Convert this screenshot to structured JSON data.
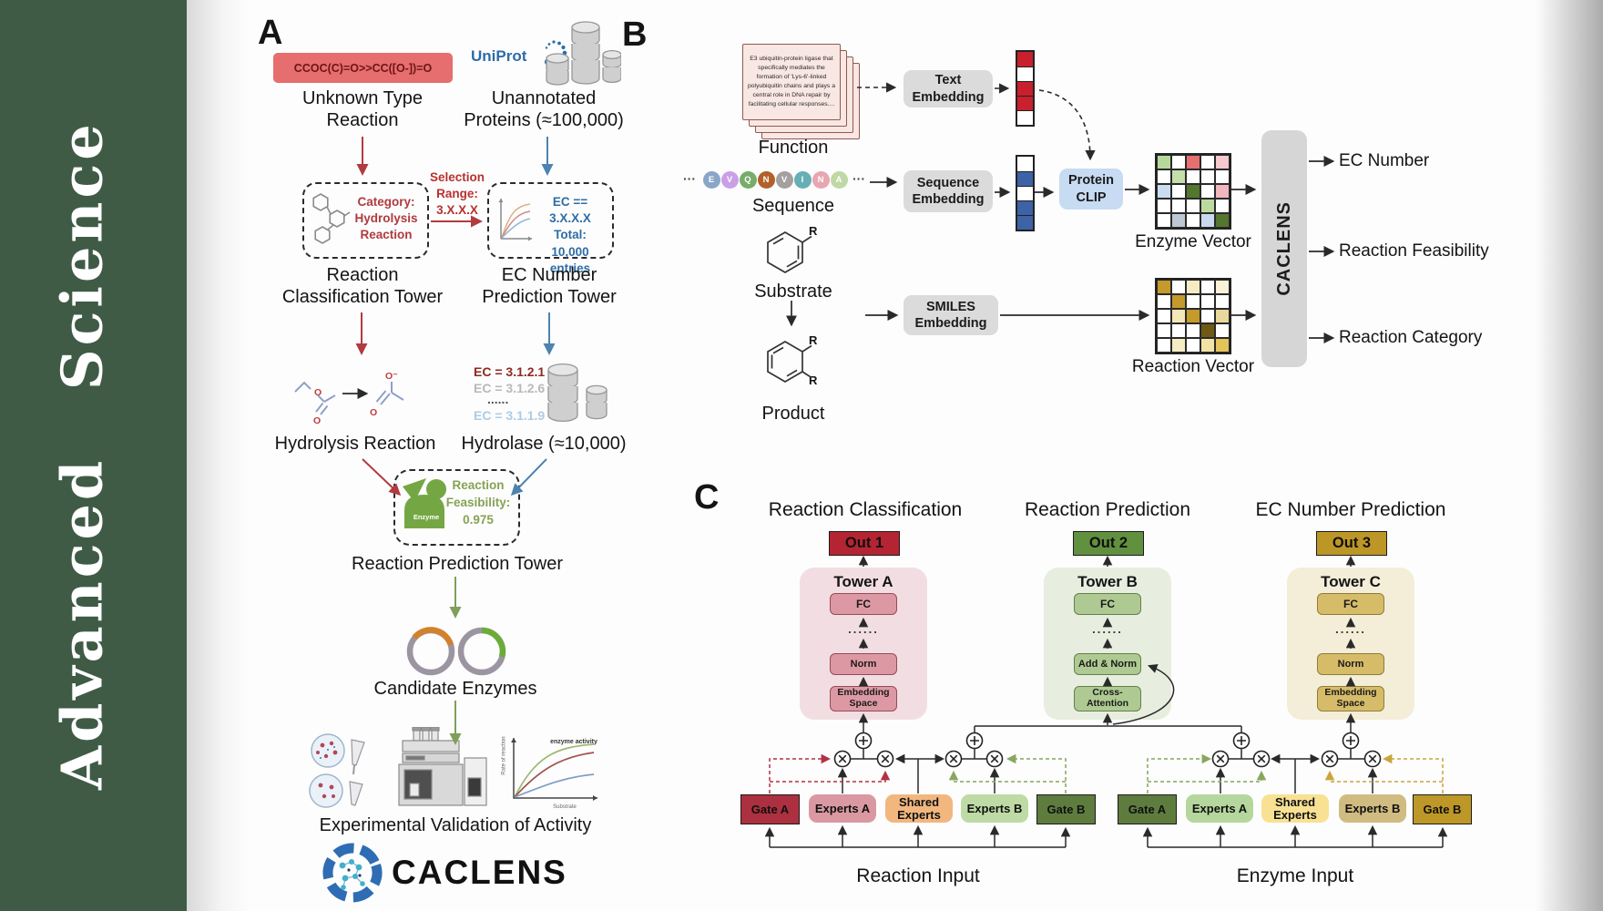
{
  "sidebar": {
    "journal": "Advanced Science"
  },
  "panelA": {
    "label": "A",
    "smiles": "CCOC(C)=O>>CC([O-])=O",
    "unknown_l1": "Unknown Type",
    "unknown_l2": "Reaction",
    "uniprot": "UniProt",
    "unannotated_l1": "Unannotated",
    "unannotated_l2": "Proteins (≈100,000)",
    "category_lines": [
      "Category:",
      "Hydrolysis",
      "Reaction"
    ],
    "selection_lines": [
      "Selection",
      "Range:",
      "3.X.X.X"
    ],
    "ec_box_lines": [
      "EC == 3.X.X.X",
      "Total: 10,000",
      "entries"
    ],
    "classification_tower_l1": "Reaction",
    "classification_tower_l2": "Classification Tower",
    "ec_tower_l1": "EC Number",
    "ec_tower_l2": "Prediction Tower",
    "atoms": {
      "o": "O",
      "ominus": "O⁻"
    },
    "ec_list": [
      {
        "text": "EC = 3.1.2.1",
        "color": "#8E2A20"
      },
      {
        "text": "EC = 3.1.2.6",
        "color": "#B9B9B9"
      },
      {
        "text": "......",
        "color": "#555555"
      },
      {
        "text": "EC = 3.1.1.9",
        "color": "#AECBE4"
      }
    ],
    "hydrolysis": "Hydrolysis Reaction",
    "hydrolase": "Hydrolase (≈10,000)",
    "enzyme_label": "Enzyme",
    "feasibility_lines": [
      "Reaction",
      "Feasibility:",
      "0.975"
    ],
    "prediction_tower": "Reaction Prediction Tower",
    "candidate": "Candidate Enzymes",
    "validation": "Experimental Validation of Activity",
    "graph": {
      "ylabel": "Rate of reaction",
      "xlabel": "Substrate",
      "annotation": "enzyme activity"
    },
    "logo_text": "CACLENS"
  },
  "panelB": {
    "label": "B",
    "card_text": "E3 ubiquitin-protein ligase that specifically mediates the formation of 'Lys-6'-linked polyubiquitin chains and plays a central role in DNA repair by facilitating cellular responses....",
    "function": "Function",
    "ellipsis": "···",
    "residues": [
      {
        "t": "E",
        "c": "#89A6C9"
      },
      {
        "t": "V",
        "c": "#C9A0E8"
      },
      {
        "t": "Q",
        "c": "#78AC6B"
      },
      {
        "t": "N",
        "c": "#B2602A"
      },
      {
        "t": "V",
        "c": "#A5A0A0"
      },
      {
        "t": "I",
        "c": "#66AFB5"
      },
      {
        "t": "N",
        "c": "#E7A6B0"
      },
      {
        "t": "A",
        "c": "#BFD8A4"
      }
    ],
    "sequence": "Sequence",
    "substrate": "Substrate",
    "product": "Product",
    "r": "R",
    "text_embedding": "Text Embedding",
    "sequence_embedding": "Sequence Embedding",
    "smiles_embedding": "SMILES Embedding",
    "protein_clip": "Protein CLIP",
    "enzyme_vector": "Enzyme Vector",
    "reaction_vector": "Reaction Vector",
    "caclens": "CACLENS",
    "outputs": [
      "EC Number",
      "Reaction Feasibility",
      "Reaction Category"
    ],
    "text_vector": [
      "#C8202C",
      "#FFFFFF",
      "#C8202C",
      "#C8202C",
      "#FFFFFF"
    ],
    "seq_vector": [
      "#FFFFFF",
      "#3D62A6",
      "#FFFFFF",
      "#3D62A6",
      "#3D62A6"
    ],
    "enzyme_matrix": [
      [
        "#B7D89B",
        "#FFFFFF",
        "#E66F6F",
        "#FFFFFF",
        "#F6C9CF"
      ],
      [
        "#FFFFFF",
        "#C4DEAC",
        "#FFFFFF",
        "#FFFFFF",
        "#FFFFFF"
      ],
      [
        "#CCDCF0",
        "#FFFFFF",
        "#55762F",
        "#FFFFFF",
        "#F2B6BE"
      ],
      [
        "#FFFFFF",
        "#FFFFFF",
        "#FFFFFF",
        "#BCDAA0",
        "#FFFFFF"
      ],
      [
        "#FFFFFF",
        "#BEC8D4",
        "#FFFFFF",
        "#C9DAEE",
        "#55762F"
      ]
    ],
    "reaction_matrix": [
      [
        "#C39A2B",
        "#FFFFFF",
        "#F6ECC4",
        "#FFFFFF",
        "#FAF2D8"
      ],
      [
        "#FFFFFF",
        "#C39A2B",
        "#FFFFFF",
        "#FFFFFF",
        "#FFFFFF"
      ],
      [
        "#FFFFFF",
        "#F4E7B6",
        "#C39A2B",
        "#FFFFFF",
        "#E9D89C"
      ],
      [
        "#FFFFFF",
        "#FFFFFF",
        "#FFFFFF",
        "#6E5A14",
        "#FFFFFF"
      ],
      [
        "#FFFFFF",
        "#F6ECC4",
        "#FFFFFF",
        "#F2E2A4",
        "#E3C35A"
      ]
    ]
  },
  "panelC": {
    "label": "C",
    "towers": [
      {
        "title": "Reaction Classification",
        "out": "Out 1",
        "name": "Tower A",
        "fc": "FC",
        "dots": "......",
        "mid": "Norm",
        "bottom": "Embedding Space"
      },
      {
        "title": "Reaction Prediction",
        "out": "Out 2",
        "name": "Tower B",
        "fc": "FC",
        "dots": "......",
        "mid": "Add & Norm",
        "bottom": "Cross-Attention"
      },
      {
        "title": "EC Number Prediction",
        "out": "Out 3",
        "name": "Tower C",
        "fc": "FC",
        "dots": "......",
        "mid": "Norm",
        "bottom": "Embedding Space"
      }
    ],
    "groups": [
      {
        "gate_a": "Gate A",
        "experts_a": "Experts A",
        "shared": "Shared Experts",
        "experts_b": "Experts B",
        "gate_b": "Gate B",
        "input": "Reaction Input"
      },
      {
        "gate_a": "Gate A",
        "experts_a": "Experts A",
        "shared": "Shared Experts",
        "experts_b": "Experts B",
        "gate_b": "Gate B",
        "input": "Enzyme Input"
      }
    ]
  }
}
